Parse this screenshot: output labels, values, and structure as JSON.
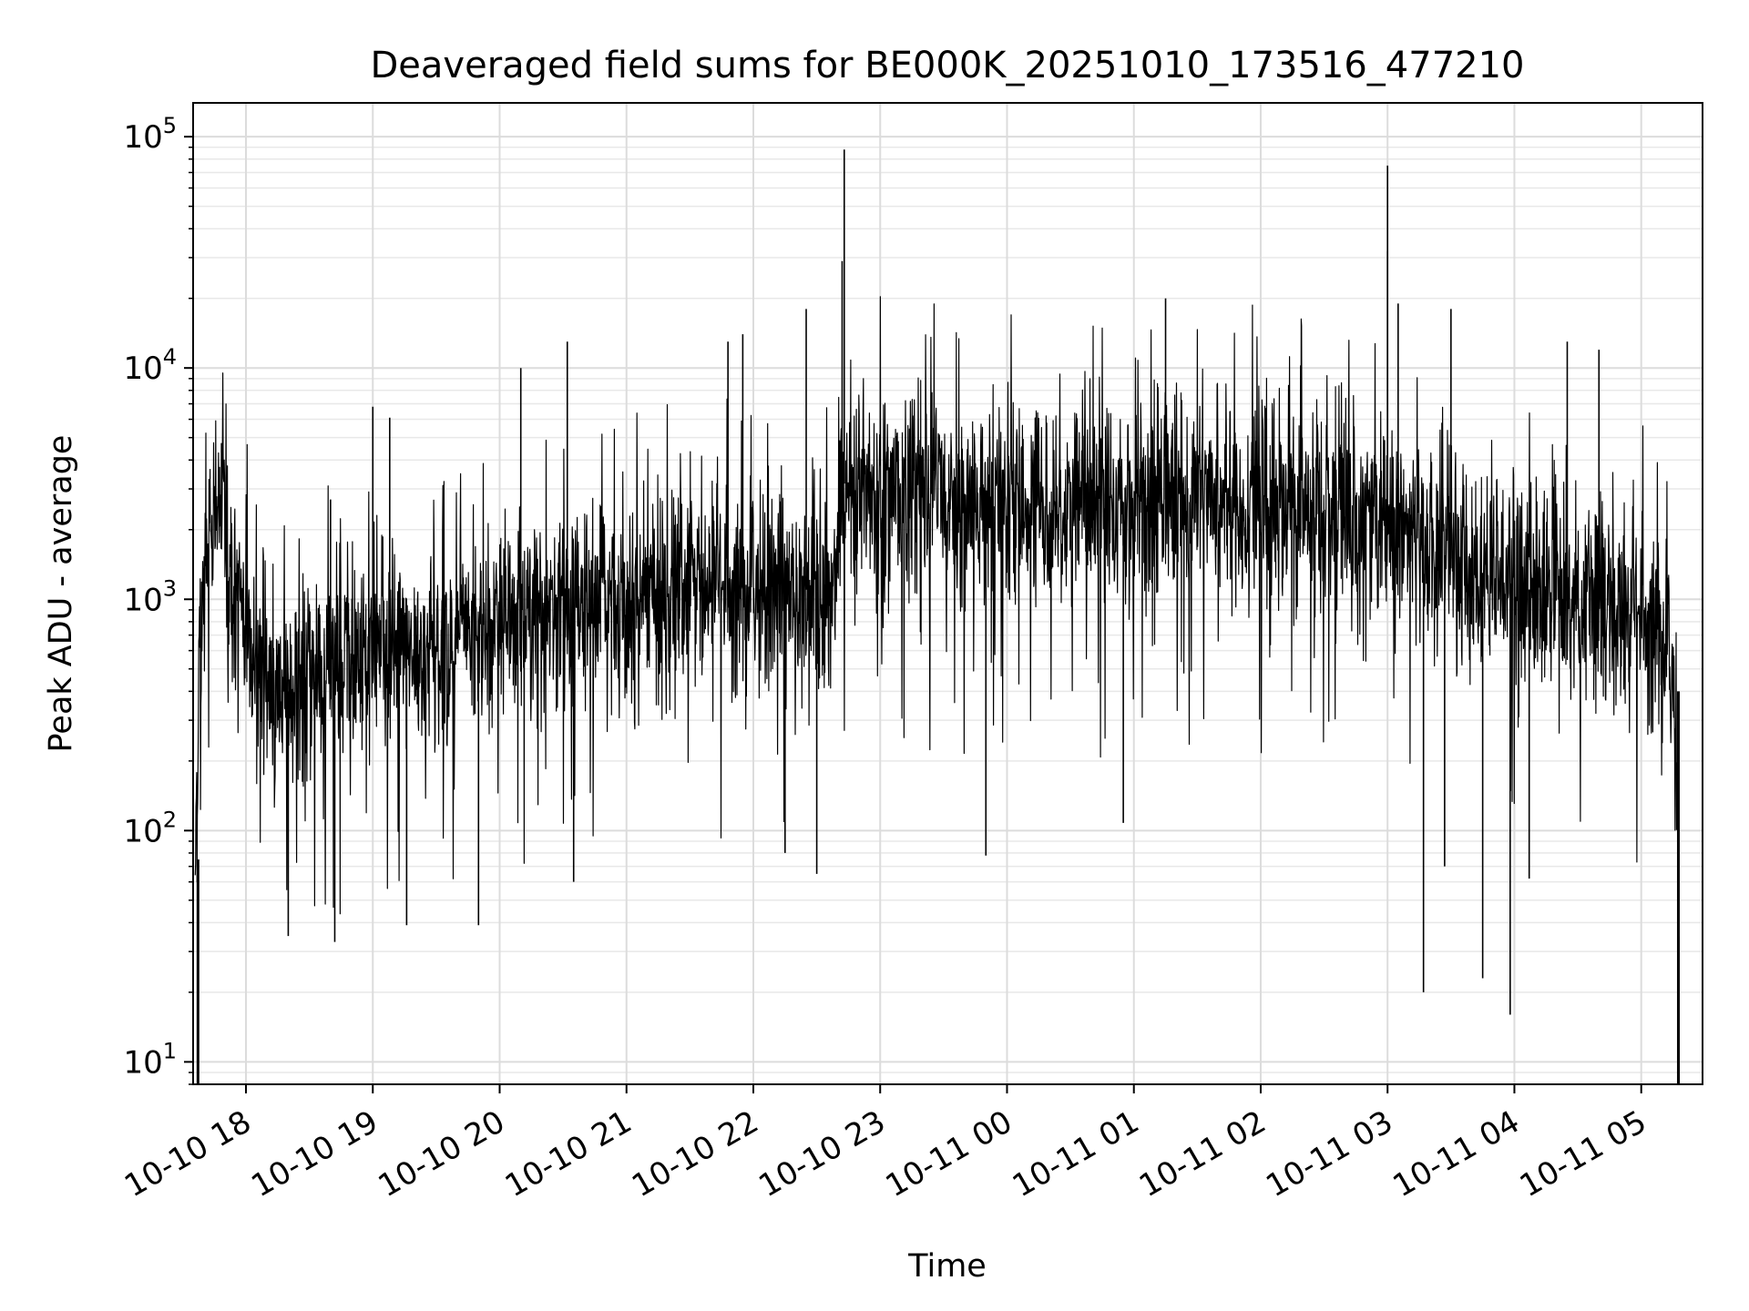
{
  "chart_data": {
    "type": "line",
    "title": "Deaveraged field sums for BE000K_20251010_173516_477210",
    "xlabel": "Time",
    "ylabel": "Peak ADU - average",
    "yscale": "log",
    "ylim": [
      8,
      140000
    ],
    "xlim": [
      "2025-10-10 17:35",
      "2025-10-11 05:29"
    ],
    "grid": "major and minor, light gray",
    "line_color": "#000000",
    "x_ticks": [
      {
        "t": "2025-10-10 18:00",
        "label": "10-10 18"
      },
      {
        "t": "2025-10-10 19:00",
        "label": "10-10 19"
      },
      {
        "t": "2025-10-10 20:00",
        "label": "10-10 20"
      },
      {
        "t": "2025-10-10 21:00",
        "label": "10-10 21"
      },
      {
        "t": "2025-10-10 22:00",
        "label": "10-10 22"
      },
      {
        "t": "2025-10-10 23:00",
        "label": "10-10 23"
      },
      {
        "t": "2025-10-11 00:00",
        "label": "10-11 00"
      },
      {
        "t": "2025-10-11 01:00",
        "label": "10-11 01"
      },
      {
        "t": "2025-10-11 02:00",
        "label": "10-11 02"
      },
      {
        "t": "2025-10-11 03:00",
        "label": "10-11 03"
      },
      {
        "t": "2025-10-11 04:00",
        "label": "10-11 04"
      },
      {
        "t": "2025-10-11 05:00",
        "label": "10-11 05"
      }
    ],
    "y_ticks": [
      {
        "value": 10,
        "base": "10",
        "exp": "1"
      },
      {
        "value": 100,
        "base": "10",
        "exp": "2"
      },
      {
        "value": 1000,
        "base": "10",
        "exp": "3"
      },
      {
        "value": 10000,
        "base": "10",
        "exp": "4"
      },
      {
        "value": 100000,
        "base": "10",
        "exp": "5"
      }
    ],
    "series": [
      {
        "x": [
          "2025-10-10 17:36",
          "2025-10-10 17:37",
          "2025-10-10 17:38",
          "2025-10-10 17:40",
          "2025-10-10 17:42",
          "2025-10-10 17:45",
          "2025-10-10 17:48",
          "2025-10-10 17:50",
          "2025-10-10 17:52",
          "2025-10-10 17:55",
          "2025-10-10 18:00",
          "2025-10-10 18:05",
          "2025-10-10 18:10",
          "2025-10-10 18:15",
          "2025-10-10 18:20",
          "2025-10-10 18:25",
          "2025-10-10 18:30",
          "2025-10-10 18:35",
          "2025-10-10 18:40",
          "2025-10-10 18:45",
          "2025-10-10 18:50",
          "2025-10-10 18:55",
          "2025-10-10 19:00",
          "2025-10-10 19:10",
          "2025-10-10 19:20",
          "2025-10-10 19:30",
          "2025-10-10 19:40",
          "2025-10-10 19:50",
          "2025-10-10 20:00",
          "2025-10-10 20:10",
          "2025-10-10 20:20",
          "2025-10-10 20:30",
          "2025-10-10 20:40",
          "2025-10-10 20:50",
          "2025-10-10 21:00",
          "2025-10-10 21:10",
          "2025-10-10 21:20",
          "2025-10-10 21:30",
          "2025-10-10 21:40",
          "2025-10-10 21:50",
          "2025-10-10 22:00",
          "2025-10-10 22:10",
          "2025-10-10 22:20",
          "2025-10-10 22:30",
          "2025-10-10 22:38",
          "2025-10-10 22:42",
          "2025-10-10 22:45",
          "2025-10-10 22:50",
          "2025-10-10 23:00",
          "2025-10-10 23:15",
          "2025-10-10 23:30",
          "2025-10-10 23:45",
          "2025-10-11 00:00",
          "2025-10-11 00:15",
          "2025-10-11 00:30",
          "2025-10-11 00:45",
          "2025-10-11 01:00",
          "2025-10-11 01:15",
          "2025-10-11 01:30",
          "2025-10-11 01:45",
          "2025-10-11 02:00",
          "2025-10-11 02:15",
          "2025-10-11 02:30",
          "2025-10-11 02:45",
          "2025-10-11 03:00",
          "2025-10-11 03:15",
          "2025-10-11 03:30",
          "2025-10-11 03:45",
          "2025-10-11 04:00",
          "2025-10-11 04:15",
          "2025-10-11 04:30",
          "2025-10-11 04:45",
          "2025-10-11 05:00",
          "2025-10-11 05:10",
          "2025-10-11 05:15",
          "2025-10-11 05:17",
          "2025-10-11 05:18"
        ],
        "y": [
          75,
          200,
          600,
          1000,
          1800,
          2200,
          2600,
          2400,
          1500,
          900,
          700,
          550,
          450,
          420,
          400,
          380,
          420,
          450,
          470,
          500,
          520,
          550,
          560,
          560,
          570,
          600,
          640,
          700,
          750,
          850,
          900,
          950,
          980,
          1000,
          1000,
          1020,
          1040,
          1060,
          1080,
          1100,
          1120,
          1120,
          1120,
          1080,
          1050,
          3200,
          3100,
          3000,
          2900,
          2800,
          2700,
          2650,
          2600,
          2550,
          2550,
          2600,
          2650,
          2700,
          2750,
          2700,
          2650,
          2550,
          2400,
          2250,
          2050,
          1750,
          1500,
          1300,
          1150,
          1050,
          950,
          900,
          850,
          700,
          450,
          200,
          8
        ],
        "mean": [
          75,
          200,
          600,
          1000,
          1800,
          2200,
          2600,
          2400,
          1500,
          900,
          700,
          550,
          450,
          420,
          400,
          380,
          420,
          450,
          470,
          500,
          520,
          550,
          560,
          560,
          570,
          600,
          640,
          700,
          750,
          850,
          900,
          950,
          980,
          1000,
          1000,
          1020,
          1040,
          1060,
          1080,
          1100,
          1120,
          1120,
          1120,
          1080,
          1050,
          3200,
          3100,
          3000,
          2900,
          2800,
          2700,
          2650,
          2600,
          2550,
          2550,
          2600,
          2650,
          2700,
          2750,
          2700,
          2650,
          2550,
          2400,
          2250,
          2050,
          1750,
          1500,
          1300,
          1150,
          1050,
          950,
          900,
          850,
          700,
          450,
          200,
          8
        ],
        "spikes": [
          {
            "t": "2025-10-10 22:43",
            "value": 88000
          },
          {
            "t": "2025-10-10 22:42",
            "value": 29000
          },
          {
            "t": "2025-10-11 03:00",
            "value": 75000
          },
          {
            "t": "2025-10-11 03:00",
            "value": 32000
          },
          {
            "t": "2025-10-11 01:15",
            "value": 20000
          },
          {
            "t": "2025-10-11 03:05",
            "value": 19000
          },
          {
            "t": "2025-10-11 03:30",
            "value": 18000
          },
          {
            "t": "2025-10-10 22:25",
            "value": 18000
          },
          {
            "t": "2025-10-11 04:25",
            "value": 13000
          },
          {
            "t": "2025-10-11 04:40",
            "value": 12000
          },
          {
            "t": "2025-10-10 21:55",
            "value": 14000
          },
          {
            "t": "2025-10-10 20:32",
            "value": 13000
          },
          {
            "t": "2025-10-10 21:48",
            "value": 13000
          },
          {
            "t": "2025-10-10 20:10",
            "value": 10000
          },
          {
            "t": "2025-10-10 19:00",
            "value": 6800
          },
          {
            "t": "2025-10-10 19:08",
            "value": 6100
          },
          {
            "t": "2025-10-10 18:40",
            "value": 2700
          },
          {
            "t": "2025-10-11 03:17",
            "value": 20
          },
          {
            "t": "2025-10-11 03:58",
            "value": 16
          },
          {
            "t": "2025-10-11 03:45",
            "value": 23
          },
          {
            "t": "2025-10-10 18:42",
            "value": 33
          },
          {
            "t": "2025-10-10 18:20",
            "value": 35
          },
          {
            "t": "2025-10-10 19:50",
            "value": 39
          },
          {
            "t": "2025-10-10 19:16",
            "value": 39
          },
          {
            "t": "2025-10-10 22:15",
            "value": 80
          },
          {
            "t": "2025-10-10 22:30",
            "value": 65
          },
          {
            "t": "2025-10-10 23:50",
            "value": 78
          },
          {
            "t": "2025-10-11 03:27",
            "value": 70
          },
          {
            "t": "2025-10-11 04:07",
            "value": 62
          },
          {
            "t": "2025-10-11 00:55",
            "value": 108
          },
          {
            "t": "2025-10-10 20:35",
            "value": 60
          }
        ]
      }
    ]
  }
}
